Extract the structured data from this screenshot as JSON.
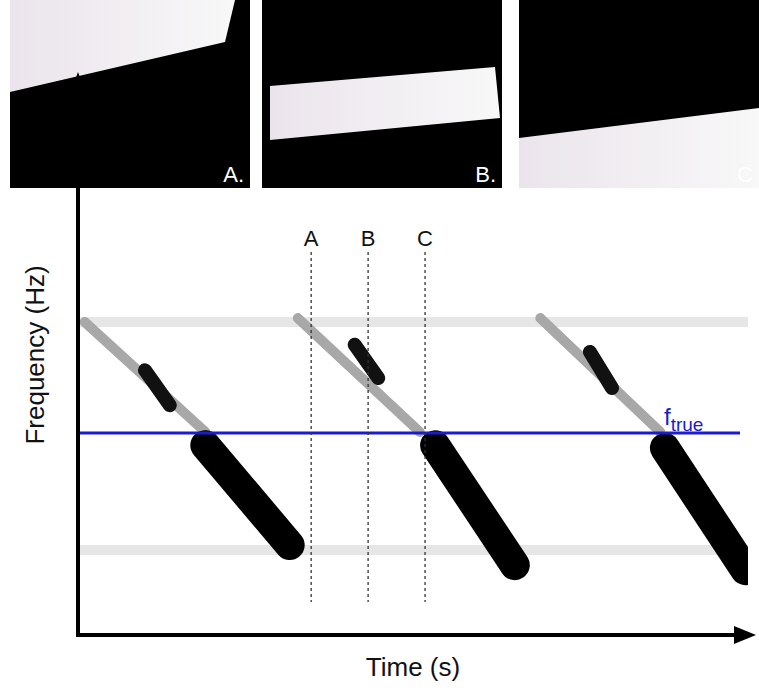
{
  "chart_data": {
    "type": "spectrogram",
    "x_label": "Time (s)",
    "y_label": "Frequency (Hz)",
    "xlim": [
      0,
      100
    ],
    "ylim": [
      0,
      100
    ],
    "xticks": [],
    "yticks": [],
    "tick_labels": false,
    "grid": false,
    "series": [
      {
        "color": "#e6e6e6",
        "line_style": "thin",
        "x": [
          0,
          100,
          50,
          0,
          100
        ],
        "values": [
          56.4,
          56.4,
          null,
          15.3,
          15.3
        ]
      },
      {
        "color": "#a8a8a8",
        "line_style": "thin",
        "x": [
          1.0,
          19.0,
          25.0,
          32.8,
          51.0,
          60.0,
          69.0,
          86.9
        ],
        "values": [
          56.4,
          36.6,
          null,
          57.1,
          36.6,
          null,
          57.1,
          36.6
        ]
      },
      {
        "color": "#111111",
        "line_style": "medium",
        "x": [
          10.0,
          13.7,
          27.0,
          41.3,
          44.8,
          60.0,
          76.4,
          79.7
        ],
        "values": [
          47.7,
          41.4,
          null,
          52.3,
          46.3,
          null,
          51.0,
          44.5
        ]
      },
      {
        "color": "#000000",
        "line_style": "thick",
        "x": [
          19.0,
          31.6,
          42.0,
          53.3,
          65.2,
          76.0,
          87.6,
          99.6
        ],
        "values": [
          34.2,
          16.2,
          null,
          34.2,
          12.6,
          null,
          33.7,
          11.7
        ]
      }
    ],
    "reference_line": {
      "label": "f",
      "subscript": "true",
      "value": 36.4,
      "color": "#1c1ccc"
    },
    "markers": [
      {
        "label": "A",
        "x": 34.8
      },
      {
        "label": "B",
        "x": 43.3
      },
      {
        "label": "C",
        "x": 51.8
      }
    ]
  },
  "panels": [
    {
      "label": "A."
    },
    {
      "label": "B."
    },
    {
      "label": "C"
    }
  ]
}
